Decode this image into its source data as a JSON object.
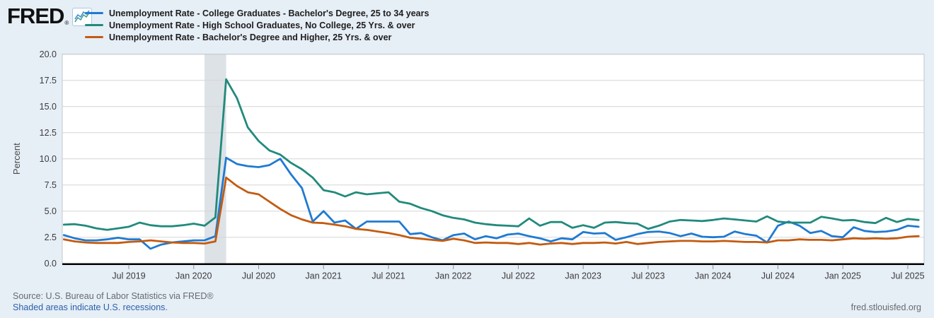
{
  "header": {
    "logo_text": "FRED",
    "logo_registered": "®"
  },
  "footer": {
    "source": "Source: U.S. Bureau of Labor Statistics via FRED®",
    "recession_note": "Shaded areas indicate U.S. recessions.",
    "site": "fred.stlouisfed.org"
  },
  "colors": {
    "page_background": "#e6eef6",
    "plot_background": "#ffffff",
    "gridline": "#d6d6d6",
    "plot_border": "#c2c8ce",
    "axis_line": "#000000",
    "tick_label": "#3c3c3c",
    "footer_text": "#666b70",
    "link": "#2c5faa",
    "recession_band": "#dde2e7"
  },
  "chart_data": {
    "type": "line",
    "title": "",
    "xlabel": "",
    "ylabel": "Percent",
    "ylim": [
      0,
      20
    ],
    "grid": true,
    "legend_position": "top-left",
    "y_tick_labels": [
      "0.0",
      "2.5",
      "5.0",
      "7.5",
      "10.0",
      "12.5",
      "15.0",
      "17.5",
      "20.0"
    ],
    "y_tick_values": [
      0,
      2.5,
      5,
      7.5,
      10,
      12.5,
      15,
      17.5,
      20
    ],
    "x_start_month": "2019-01",
    "x_end_month": "2025-08",
    "x_tick_labels": [
      "Jul 2019",
      "Jan 2020",
      "Jul 2020",
      "Jan 2021",
      "Jul 2021",
      "Jan 2022",
      "Jul 2022",
      "Jan 2023",
      "Jul 2023",
      "Jan 2024",
      "Jul 2024",
      "Jan 2025",
      "Jul 2025"
    ],
    "x_tick_month_indices": [
      6,
      12,
      18,
      24,
      30,
      36,
      42,
      48,
      54,
      60,
      66,
      72,
      78
    ],
    "recession_shading": {
      "from": "2020-02",
      "to": "2020-04",
      "from_index": 13,
      "to_index": 15
    },
    "series": [
      {
        "name": "Unemployment Rate - College Graduates - Bachelor's Degree, 25 to 34 years",
        "color": "#1f7ad1",
        "values": [
          2.7,
          2.4,
          2.2,
          2.2,
          2.3,
          2.45,
          2.3,
          2.3,
          1.4,
          1.8,
          2.0,
          2.1,
          2.2,
          2.2,
          2.6,
          10.1,
          9.5,
          9.3,
          9.2,
          9.4,
          10.0,
          8.5,
          7.2,
          4.0,
          5.0,
          3.9,
          4.1,
          3.3,
          4.0,
          4.0,
          4.0,
          4.0,
          2.8,
          2.9,
          2.5,
          2.2,
          2.7,
          2.85,
          2.3,
          2.6,
          2.4,
          2.75,
          2.85,
          2.6,
          2.4,
          2.1,
          2.4,
          2.3,
          3.0,
          2.85,
          2.9,
          2.25,
          2.5,
          2.8,
          3.0,
          3.05,
          2.9,
          2.6,
          2.85,
          2.55,
          2.5,
          2.55,
          3.05,
          2.8,
          2.65,
          2.0,
          3.6,
          4.0,
          3.6,
          2.9,
          3.1,
          2.6,
          2.5,
          3.45,
          3.1,
          3.0,
          3.05,
          3.2,
          3.6,
          3.5
        ]
      },
      {
        "name": "Unemployment Rate - High School Graduates, No College, 25 Yrs. & over",
        "color": "#218a7c",
        "values": [
          3.7,
          3.75,
          3.6,
          3.35,
          3.2,
          3.35,
          3.5,
          3.9,
          3.65,
          3.55,
          3.55,
          3.65,
          3.8,
          3.6,
          4.4,
          17.6,
          15.8,
          13.0,
          11.7,
          10.8,
          10.4,
          9.6,
          9.0,
          8.2,
          7.0,
          6.8,
          6.4,
          6.8,
          6.6,
          6.7,
          6.8,
          5.9,
          5.7,
          5.3,
          5.0,
          4.6,
          4.35,
          4.2,
          3.9,
          3.75,
          3.65,
          3.6,
          3.55,
          4.3,
          3.6,
          3.95,
          3.95,
          3.4,
          3.65,
          3.4,
          3.9,
          3.95,
          3.85,
          3.8,
          3.3,
          3.6,
          4.0,
          4.15,
          4.1,
          4.05,
          4.15,
          4.3,
          4.2,
          4.1,
          4.0,
          4.5,
          4.0,
          3.9,
          3.9,
          3.9,
          4.45,
          4.3,
          4.1,
          4.15,
          3.95,
          3.85,
          4.35,
          3.95,
          4.25,
          4.15
        ]
      },
      {
        "name": "Unemployment Rate - Bachelor's Degree and Higher, 25 Yrs. & over",
        "color": "#c35b11",
        "values": [
          2.3,
          2.1,
          2.0,
          1.95,
          1.95,
          1.95,
          2.05,
          2.1,
          2.2,
          2.1,
          2.0,
          1.95,
          1.95,
          1.9,
          2.1,
          8.2,
          7.4,
          6.8,
          6.6,
          5.9,
          5.2,
          4.6,
          4.2,
          3.9,
          3.85,
          3.7,
          3.55,
          3.3,
          3.2,
          3.05,
          2.9,
          2.7,
          2.45,
          2.35,
          2.25,
          2.15,
          2.35,
          2.2,
          1.95,
          2.0,
          1.95,
          1.95,
          1.85,
          1.95,
          1.8,
          1.9,
          1.95,
          1.85,
          1.95,
          1.95,
          2.0,
          1.9,
          2.05,
          1.85,
          1.95,
          2.05,
          2.1,
          2.15,
          2.15,
          2.1,
          2.1,
          2.15,
          2.1,
          2.05,
          2.05,
          2.0,
          2.2,
          2.2,
          2.3,
          2.25,
          2.25,
          2.2,
          2.3,
          2.4,
          2.35,
          2.4,
          2.35,
          2.4,
          2.55,
          2.6
        ]
      }
    ]
  }
}
